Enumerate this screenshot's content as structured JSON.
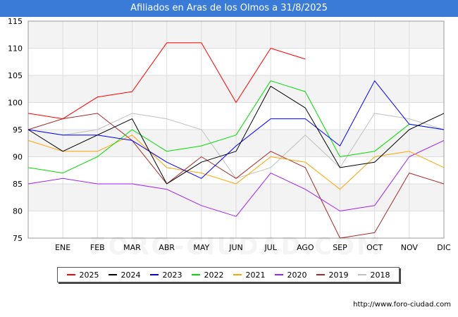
{
  "title": "Afiliados en Aras de los Olmos a 31/8/2025",
  "source": "http://www.foro-ciudad.com",
  "watermark": "FORO-CIUDAD.COM",
  "chart_data": {
    "type": "line",
    "title": "Afiliados en Aras de los Olmos a 31/8/2025",
    "xlabel": "",
    "ylabel": "",
    "ylim": [
      75,
      115
    ],
    "yticks": [
      75,
      80,
      85,
      90,
      95,
      100,
      105,
      110,
      115
    ],
    "categories": [
      "",
      "ENE",
      "FEB",
      "MAR",
      "ABR",
      "MAY",
      "JUN",
      "JUL",
      "AGO",
      "SEP",
      "OCT",
      "NOV",
      "DIC"
    ],
    "grid": true,
    "legend_position": "bottom",
    "series": [
      {
        "name": "2025",
        "color": "#ff0000",
        "values": [
          98,
          97,
          101,
          102,
          111,
          111,
          100,
          110,
          108,
          null,
          null,
          null,
          null
        ]
      },
      {
        "name": "2024",
        "color": "#000000",
        "values": [
          95,
          91,
          94,
          97,
          85,
          89,
          91,
          103,
          99,
          88,
          89,
          95,
          98
        ]
      },
      {
        "name": "2023",
        "color": "#0000ff",
        "values": [
          95,
          94,
          94,
          93,
          89,
          86,
          92,
          97,
          97,
          92,
          104,
          96,
          95
        ]
      },
      {
        "name": "2022",
        "color": "#00dd00",
        "values": [
          88,
          87,
          90,
          95,
          91,
          92,
          94,
          104,
          102,
          90,
          91,
          96,
          95
        ]
      },
      {
        "name": "2021",
        "color": "#ffa500",
        "values": [
          93,
          91,
          91,
          94,
          88,
          87,
          85,
          90,
          89,
          84,
          90,
          91,
          88
        ]
      },
      {
        "name": "2020",
        "color": "#a020f0",
        "values": [
          85,
          86,
          85,
          85,
          84,
          81,
          79,
          87,
          84,
          80,
          81,
          90,
          93
        ]
      },
      {
        "name": "2019",
        "color": "#a52a2a",
        "values": [
          95,
          97,
          98,
          93,
          85,
          90,
          86,
          91,
          88,
          75,
          76,
          87,
          85
        ]
      },
      {
        "name": "2018",
        "color": "#c0c0c0",
        "values": [
          95,
          94,
          95,
          98,
          97,
          95,
          86,
          88,
          94,
          88,
          98,
          97,
          95
        ]
      }
    ]
  }
}
